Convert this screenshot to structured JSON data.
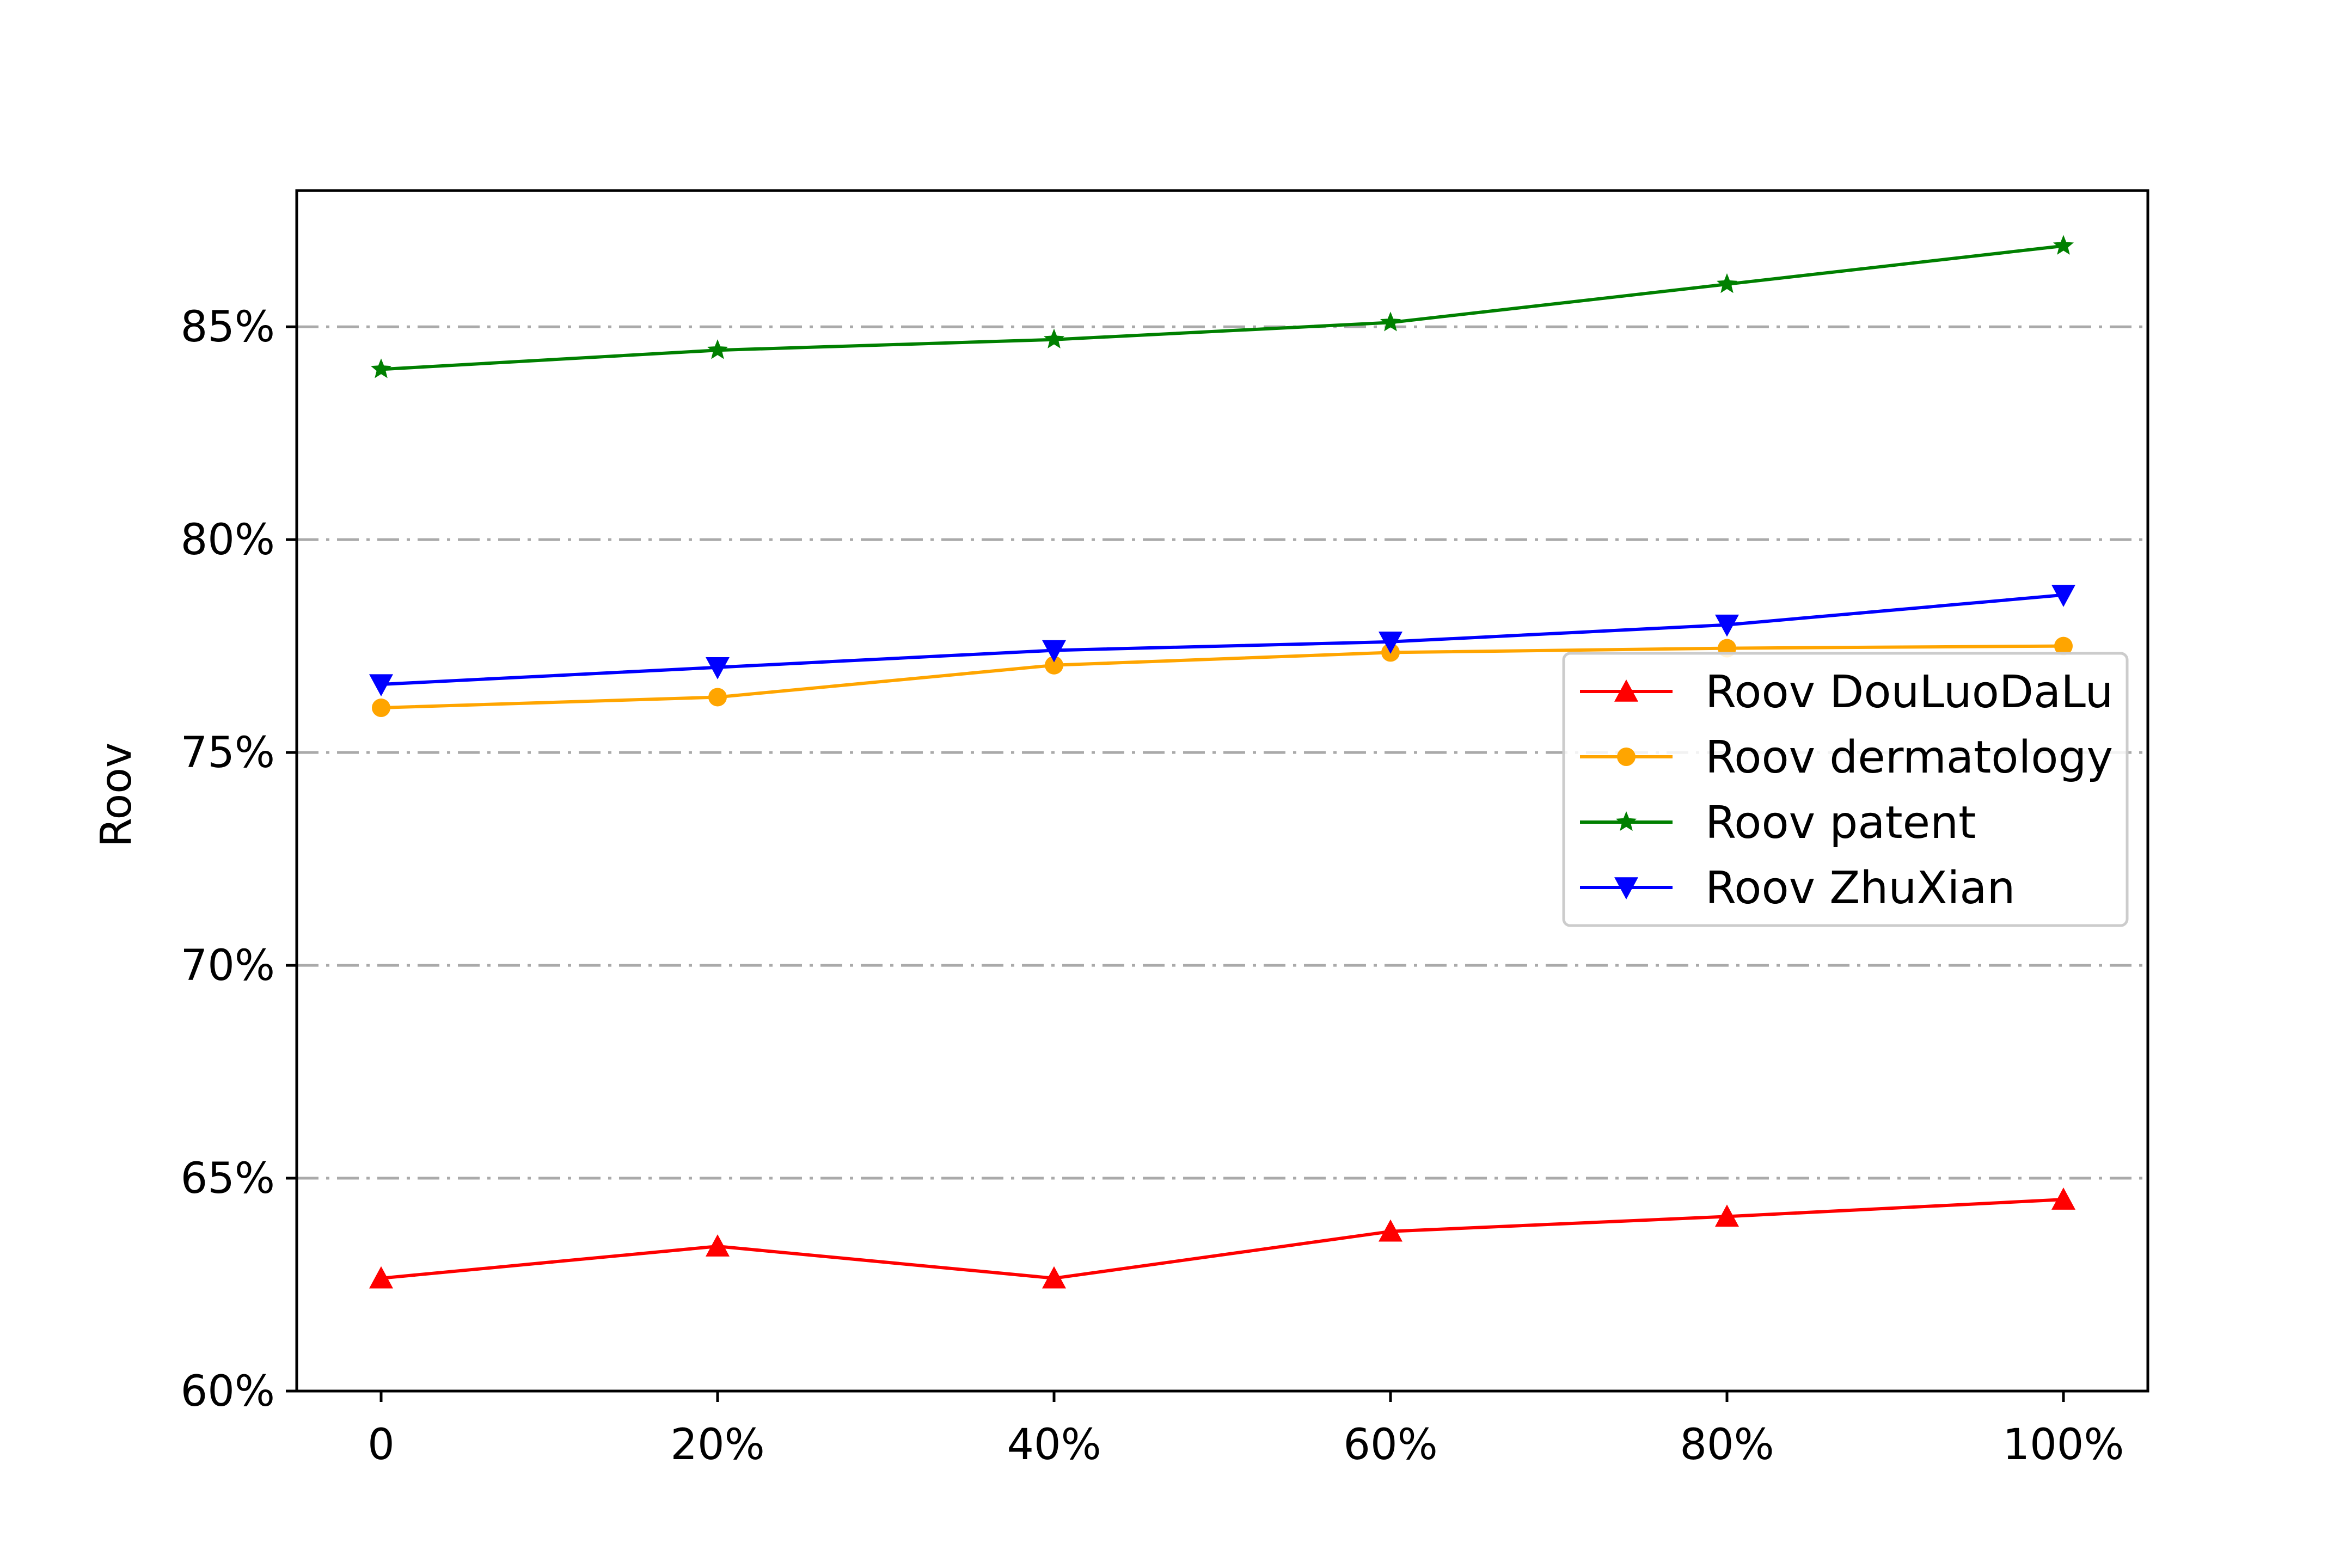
{
  "chart_data": {
    "type": "line",
    "title": "",
    "xlabel": "",
    "ylabel": "Roov",
    "categories": [
      "0",
      "20%",
      "40%",
      "60%",
      "80%",
      "100%"
    ],
    "x_tick_labels": [
      "0",
      "20%",
      "40%",
      "60%",
      "80%",
      "100%"
    ],
    "y_tick_labels": [
      "60%",
      "65%",
      "70%",
      "75%",
      "80%",
      "85%"
    ],
    "y_ticks": [
      60,
      65,
      70,
      75,
      80,
      85
    ],
    "ylim": [
      60,
      88.2
    ],
    "grid": {
      "y": true,
      "x": false,
      "style": "dash-dot",
      "color": "#aaaaaa"
    },
    "legend_position": "center-right",
    "series": [
      {
        "name": "Roov DouLuoDaLu",
        "color": "#ff0000",
        "marker": "triangle-up",
        "values": [
          62.65,
          63.4,
          62.65,
          63.75,
          64.1,
          64.5
        ]
      },
      {
        "name": "Roov dermatology",
        "color": "#ffa500",
        "marker": "circle",
        "values": [
          76.05,
          76.3,
          77.05,
          77.35,
          77.45,
          77.5
        ]
      },
      {
        "name": "Roov patent",
        "color": "#008000",
        "marker": "star",
        "values": [
          84.0,
          84.45,
          84.7,
          85.1,
          86.0,
          86.9
        ]
      },
      {
        "name": "Roov ZhuXian",
        "color": "#0000ff",
        "marker": "triangle-down",
        "values": [
          76.6,
          77.0,
          77.4,
          77.6,
          78.0,
          78.7
        ]
      }
    ]
  }
}
